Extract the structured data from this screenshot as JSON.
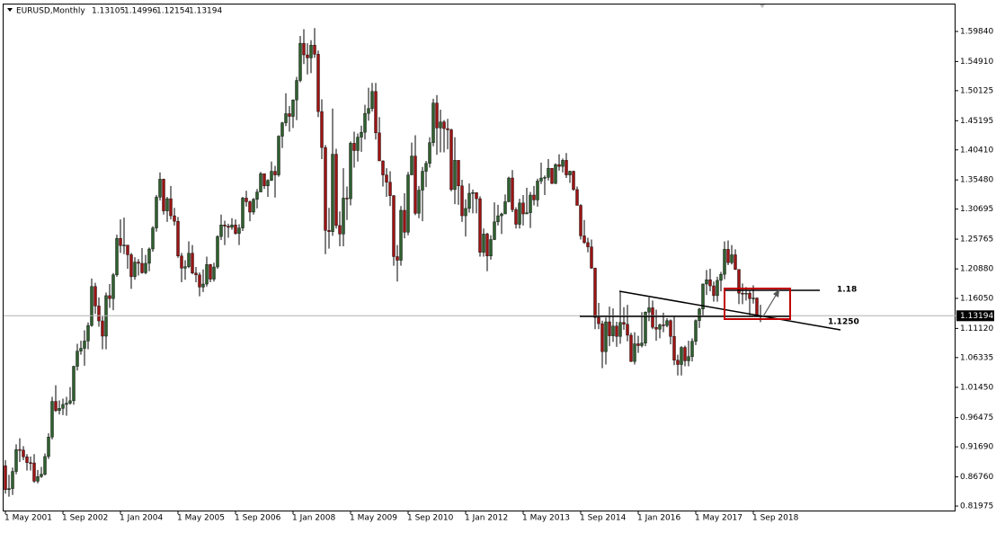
{
  "chart_data": {
    "type": "candlestick",
    "title": "EURUSD,Monthly",
    "up_color": "#2f5f2f",
    "down_color": "#9c1414",
    "wick_color": "#000000",
    "ylim": [
      0.8124,
      1.6441
    ],
    "yticks": [
      {
        "value": 1.5984,
        "label": "1.59840"
      },
      {
        "value": 1.5491,
        "label": "1.54910"
      },
      {
        "value": 1.50125,
        "label": "1.50125"
      },
      {
        "value": 1.45195,
        "label": "1.45195"
      },
      {
        "value": 1.4041,
        "label": "1.40410"
      },
      {
        "value": 1.3548,
        "label": "1.35480"
      },
      {
        "value": 1.30695,
        "label": "1.30695"
      },
      {
        "value": 1.25765,
        "label": "1.25765"
      },
      {
        "value": 1.2088,
        "label": "1.20880"
      },
      {
        "value": 1.1605,
        "label": "1.16050"
      },
      {
        "value": 1.1112,
        "label": "1.11120"
      },
      {
        "value": 1.06335,
        "label": "1.06335"
      },
      {
        "value": 1.0145,
        "label": "1.01450"
      },
      {
        "value": 0.96475,
        "label": "0.96475"
      },
      {
        "value": 0.9169,
        "label": "0.91690"
      },
      {
        "value": 0.8676,
        "label": "0.86760"
      },
      {
        "value": 0.81975,
        "label": "0.81975"
      }
    ],
    "annotations": [
      "1.18",
      "1.1250"
    ],
    "categories": [
      "1 May 2001",
      null,
      null,
      null,
      null,
      null,
      null,
      null,
      null,
      null,
      null,
      null,
      null,
      null,
      null,
      null,
      "1 Sep 2002",
      null,
      null,
      null,
      null,
      null,
      null,
      null,
      null,
      null,
      null,
      null,
      null,
      null,
      null,
      null,
      "1 Jan 2004",
      null,
      null,
      null,
      null,
      null,
      null,
      null,
      null,
      null,
      null,
      null,
      null,
      null,
      null,
      null,
      "1 May 2005",
      null,
      null,
      null,
      null,
      null,
      null,
      null,
      null,
      null,
      null,
      null,
      null,
      null,
      null,
      null,
      "1 Sep 2006",
      null,
      null,
      null,
      null,
      null,
      null,
      null,
      null,
      null,
      null,
      null,
      null,
      null,
      null,
      null,
      "1 Jan 2008",
      null,
      null,
      null,
      null,
      null,
      null,
      null,
      null,
      null,
      null,
      null,
      null,
      null,
      null,
      null,
      "1 May 2009",
      null,
      null,
      null,
      null,
      null,
      null,
      null,
      null,
      null,
      null,
      null,
      null,
      null,
      null,
      null,
      "1 Sep 2010",
      null,
      null,
      null,
      null,
      null,
      null,
      null,
      null,
      null,
      null,
      null,
      null,
      null,
      null,
      null,
      "1 Jan 2012",
      null,
      null,
      null,
      null,
      null,
      null,
      null,
      null,
      null,
      null,
      null,
      null,
      null,
      null,
      null,
      "1 May 2013",
      null,
      null,
      null,
      null,
      null,
      null,
      null,
      null,
      null,
      null,
      null,
      null,
      null,
      null,
      null,
      "1 Sep 2014",
      null,
      null,
      null,
      null,
      null,
      null,
      null,
      null,
      null,
      null,
      null,
      null,
      null,
      null,
      null,
      "1 Jan 2016",
      null,
      null,
      null,
      null,
      null,
      null,
      null,
      null,
      null,
      null,
      null,
      null,
      null,
      null,
      null,
      "1 May 2017",
      null,
      null,
      null,
      null,
      null,
      null,
      null,
      null,
      null,
      null,
      null,
      null,
      null,
      null,
      null,
      "1 Sep 2018",
      null,
      null
    ],
    "open": [
      0.886,
      0.8466,
      0.8484,
      0.8765,
      0.9125,
      0.9115,
      0.9005,
      0.891,
      0.8905,
      0.8605,
      0.868,
      0.872,
      0.901,
      0.933,
      0.9915,
      0.9765,
      0.98,
      0.9865,
      0.9885,
      0.9925,
      1.049,
      1.074,
      1.0785,
      1.0905,
      1.116,
      1.18,
      1.148,
      1.1235,
      1.0985,
      1.165,
      1.16,
      1.199,
      1.259,
      1.247,
      1.248,
      1.232,
      1.196,
      1.22,
      1.218,
      1.2025,
      1.218,
      1.2415,
      1.276,
      1.3265,
      1.356,
      1.304,
      1.324,
      1.296,
      1.287,
      1.23,
      1.21,
      1.2125,
      1.2345,
      1.202,
      1.199,
      1.179,
      1.184,
      1.216,
      1.192,
      1.212,
      1.262,
      1.281,
      1.279,
      1.277,
      1.281,
      1.267,
      1.276,
      1.325,
      1.319,
      1.302,
      1.323,
      1.335,
      1.365,
      1.345,
      1.354,
      1.369,
      1.363,
      1.4265,
      1.4485,
      1.4635,
      1.459,
      1.486,
      1.518,
      1.579,
      1.56,
      1.555,
      1.576,
      1.561,
      1.467,
      1.408,
      1.272,
      1.27,
      1.397,
      1.28,
      1.266,
      1.325,
      1.324,
      1.415,
      1.403,
      1.425,
      1.433,
      1.464,
      1.472,
      1.5,
      1.432,
      1.386,
      1.363,
      1.351,
      1.329,
      1.229,
      1.223,
      1.305,
      1.269,
      1.363,
      1.394,
      1.3,
      1.338,
      1.369,
      1.382,
      1.416,
      1.481,
      1.44,
      1.45,
      1.439,
      1.437,
      1.339,
      1.387,
      1.345,
      1.296,
      1.308,
      1.333,
      1.334,
      1.324,
      1.236,
      1.266,
      1.23,
      1.257,
      1.286,
      1.296,
      1.299,
      1.319,
      1.358,
      1.306,
      1.282,
      1.317,
      1.299,
      1.301,
      1.33,
      1.322,
      1.353,
      1.358,
      1.359,
      1.374,
      1.349,
      1.38,
      1.377,
      1.387,
      1.363,
      1.369,
      1.339,
      1.313,
      1.263,
      1.252,
      1.245,
      1.21,
      1.129,
      1.119,
      1.073,
      1.122,
      1.099,
      1.115,
      1.098,
      1.121,
      1.118,
      1.1,
      1.057,
      1.086,
      1.083,
      1.087,
      1.138,
      1.145,
      1.113,
      1.11,
      1.117,
      1.116,
      1.124,
      1.098,
      1.059,
      1.052,
      1.08,
      1.058,
      1.065,
      1.09,
      1.124,
      1.143,
      1.184,
      1.191,
      1.181,
      1.165,
      1.19,
      1.2,
      1.241,
      1.219,
      1.232,
      1.208,
      1.169,
      1.168,
      1.169,
      1.16,
      1.161,
      1.13105
    ],
    "high": [
      0.895,
      0.871,
      0.883,
      0.921,
      0.931,
      0.918,
      0.905,
      0.901,
      0.905,
      0.879,
      0.884,
      0.906,
      0.939,
      0.999,
      1.018,
      0.993,
      0.996,
      0.999,
      1.015,
      1.05,
      1.086,
      1.091,
      1.108,
      1.121,
      1.193,
      1.186,
      1.162,
      1.131,
      1.17,
      1.184,
      1.202,
      1.265,
      1.29,
      1.293,
      1.24,
      1.235,
      1.228,
      1.225,
      1.243,
      1.232,
      1.244,
      1.279,
      1.33,
      1.367,
      1.357,
      1.327,
      1.345,
      1.309,
      1.294,
      1.235,
      1.223,
      1.254,
      1.248,
      1.212,
      1.203,
      1.208,
      1.229,
      1.217,
      1.219,
      1.264,
      1.298,
      1.288,
      1.283,
      1.292,
      1.29,
      1.282,
      1.327,
      1.337,
      1.321,
      1.325,
      1.34,
      1.368,
      1.361,
      1.356,
      1.385,
      1.378,
      1.428,
      1.45,
      1.497,
      1.476,
      1.487,
      1.524,
      1.591,
      1.602,
      1.579,
      1.584,
      1.604,
      1.567,
      1.487,
      1.412,
      1.309,
      1.472,
      1.406,
      1.303,
      1.374,
      1.344,
      1.418,
      1.434,
      1.431,
      1.444,
      1.478,
      1.506,
      1.514,
      1.514,
      1.458,
      1.387,
      1.374,
      1.369,
      1.33,
      1.248,
      1.312,
      1.333,
      1.368,
      1.416,
      1.428,
      1.345,
      1.376,
      1.386,
      1.425,
      1.488,
      1.494,
      1.47,
      1.453,
      1.455,
      1.439,
      1.425,
      1.387,
      1.355,
      1.323,
      1.349,
      1.339,
      1.329,
      1.328,
      1.275,
      1.268,
      1.264,
      1.318,
      1.314,
      1.301,
      1.331,
      1.36,
      1.371,
      1.31,
      1.324,
      1.33,
      1.342,
      1.335,
      1.345,
      1.357,
      1.383,
      1.362,
      1.389,
      1.374,
      1.382,
      1.397,
      1.39,
      1.399,
      1.37,
      1.37,
      1.344,
      1.315,
      1.289,
      1.26,
      1.257,
      1.211,
      1.153,
      1.124,
      1.129,
      1.147,
      1.144,
      1.122,
      1.171,
      1.146,
      1.15,
      1.104,
      1.105,
      1.099,
      1.138,
      1.139,
      1.162,
      1.157,
      1.142,
      1.119,
      1.137,
      1.128,
      1.126,
      1.13,
      1.068,
      1.082,
      1.083,
      1.091,
      1.095,
      1.126,
      1.145,
      1.185,
      1.207,
      1.209,
      1.188,
      1.196,
      1.204,
      1.254,
      1.2555,
      1.248,
      1.241,
      1.208,
      1.185,
      1.179,
      1.173,
      1.182,
      1.162,
      1.14996
    ],
    "low": [
      0.84,
      0.835,
      0.838,
      0.872,
      0.892,
      0.895,
      0.878,
      0.878,
      0.858,
      0.857,
      0.866,
      0.87,
      0.897,
      0.929,
      0.974,
      0.97,
      0.969,
      0.968,
      0.986,
      0.986,
      1.042,
      1.068,
      1.05,
      1.077,
      1.114,
      1.135,
      1.114,
      1.077,
      1.077,
      1.145,
      1.141,
      1.196,
      1.235,
      1.233,
      1.209,
      1.176,
      1.191,
      1.198,
      1.201,
      1.2,
      1.205,
      1.237,
      1.27,
      1.321,
      1.298,
      1.286,
      1.29,
      1.28,
      1.227,
      1.187,
      1.191,
      1.21,
      1.2,
      1.187,
      1.164,
      1.171,
      1.18,
      1.187,
      1.188,
      1.209,
      1.256,
      1.248,
      1.26,
      1.273,
      1.265,
      1.248,
      1.271,
      1.311,
      1.287,
      1.298,
      1.308,
      1.335,
      1.34,
      1.327,
      1.353,
      1.326,
      1.36,
      1.407,
      1.443,
      1.434,
      1.44,
      1.453,
      1.515,
      1.545,
      1.528,
      1.53,
      1.555,
      1.458,
      1.389,
      1.233,
      1.242,
      1.263,
      1.275,
      1.246,
      1.246,
      1.289,
      1.313,
      1.375,
      1.385,
      1.401,
      1.421,
      1.452,
      1.467,
      1.421,
      1.386,
      1.344,
      1.327,
      1.312,
      1.214,
      1.188,
      1.214,
      1.259,
      1.264,
      1.369,
      1.297,
      1.292,
      1.287,
      1.343,
      1.375,
      1.41,
      1.396,
      1.4,
      1.4,
      1.405,
      1.336,
      1.315,
      1.314,
      1.286,
      1.262,
      1.301,
      1.3,
      1.3,
      1.229,
      1.229,
      1.205,
      1.224,
      1.256,
      1.28,
      1.266,
      1.299,
      1.318,
      1.302,
      1.275,
      1.275,
      1.28,
      1.299,
      1.276,
      1.313,
      1.311,
      1.348,
      1.33,
      1.354,
      1.348,
      1.348,
      1.37,
      1.367,
      1.358,
      1.35,
      1.337,
      1.313,
      1.257,
      1.25,
      1.236,
      1.209,
      1.11,
      1.11,
      1.046,
      1.052,
      1.082,
      1.089,
      1.081,
      1.086,
      1.109,
      1.09,
      1.056,
      1.052,
      1.071,
      1.08,
      1.082,
      1.123,
      1.11,
      1.091,
      1.095,
      1.105,
      1.113,
      1.085,
      1.051,
      1.034,
      1.034,
      1.049,
      1.049,
      1.057,
      1.084,
      1.112,
      1.131,
      1.166,
      1.172,
      1.155,
      1.155,
      1.172,
      1.192,
      1.215,
      1.216,
      1.207,
      1.151,
      1.151,
      1.157,
      1.13,
      1.152,
      1.13,
      1.12154
    ],
    "close": [
      0.8466,
      0.8484,
      0.8765,
      0.9125,
      0.9115,
      0.9005,
      0.891,
      0.8905,
      0.8605,
      0.868,
      0.872,
      0.901,
      0.933,
      0.9915,
      0.9765,
      0.98,
      0.9865,
      0.9885,
      0.9925,
      1.049,
      1.074,
      1.0785,
      1.0905,
      1.116,
      1.18,
      1.148,
      1.1235,
      1.0985,
      1.165,
      1.16,
      1.199,
      1.259,
      1.247,
      1.248,
      1.232,
      1.196,
      1.22,
      1.218,
      1.2025,
      1.218,
      1.2415,
      1.276,
      1.3265,
      1.356,
      1.304,
      1.324,
      1.296,
      1.287,
      1.23,
      1.21,
      1.2125,
      1.2345,
      1.202,
      1.199,
      1.179,
      1.184,
      1.216,
      1.192,
      1.212,
      1.262,
      1.281,
      1.279,
      1.277,
      1.281,
      1.267,
      1.276,
      1.325,
      1.319,
      1.302,
      1.323,
      1.335,
      1.365,
      1.345,
      1.354,
      1.369,
      1.363,
      1.4265,
      1.4485,
      1.4635,
      1.459,
      1.486,
      1.518,
      1.579,
      1.56,
      1.555,
      1.576,
      1.561,
      1.467,
      1.408,
      1.272,
      1.27,
      1.397,
      1.28,
      1.266,
      1.325,
      1.324,
      1.415,
      1.403,
      1.425,
      1.433,
      1.464,
      1.472,
      1.5,
      1.432,
      1.386,
      1.363,
      1.351,
      1.329,
      1.229,
      1.223,
      1.305,
      1.269,
      1.363,
      1.394,
      1.3,
      1.338,
      1.369,
      1.382,
      1.416,
      1.481,
      1.44,
      1.45,
      1.439,
      1.437,
      1.339,
      1.387,
      1.345,
      1.296,
      1.308,
      1.333,
      1.334,
      1.324,
      1.236,
      1.266,
      1.23,
      1.257,
      1.286,
      1.296,
      1.299,
      1.319,
      1.358,
      1.306,
      1.282,
      1.317,
      1.299,
      1.301,
      1.33,
      1.322,
      1.353,
      1.358,
      1.359,
      1.374,
      1.349,
      1.38,
      1.377,
      1.387,
      1.363,
      1.369,
      1.339,
      1.313,
      1.263,
      1.252,
      1.245,
      1.21,
      1.129,
      1.119,
      1.073,
      1.122,
      1.099,
      1.115,
      1.098,
      1.121,
      1.118,
      1.1,
      1.057,
      1.086,
      1.083,
      1.087,
      1.138,
      1.145,
      1.113,
      1.11,
      1.117,
      1.116,
      1.124,
      1.098,
      1.059,
      1.052,
      1.08,
      1.058,
      1.065,
      1.09,
      1.124,
      1.143,
      1.184,
      1.191,
      1.181,
      1.165,
      1.19,
      1.2,
      1.241,
      1.219,
      1.232,
      1.208,
      1.169,
      1.168,
      1.169,
      1.16,
      1.161,
      1.131,
      1.13194
    ]
  }
}
